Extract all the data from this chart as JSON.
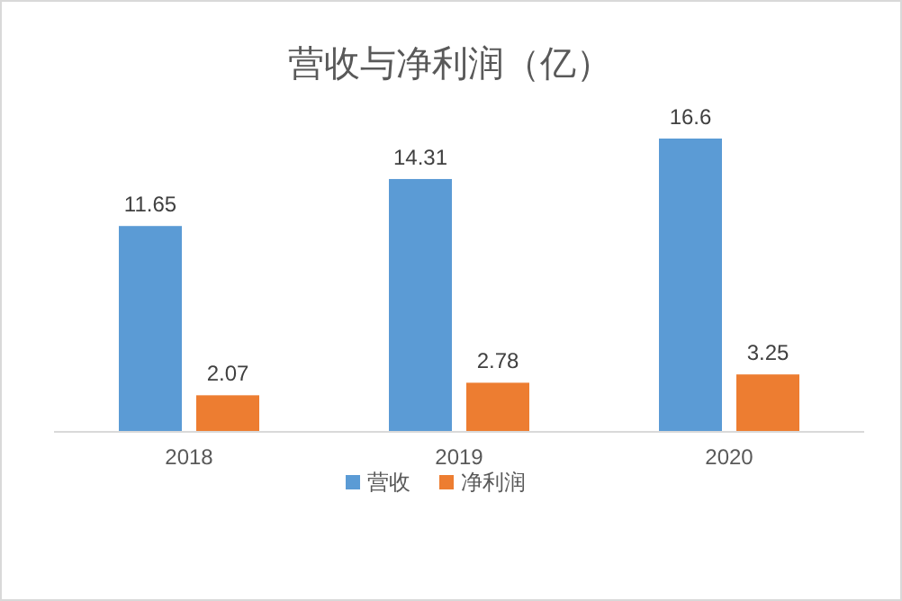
{
  "chart_data": {
    "type": "bar",
    "title": "营收与净利润（亿）",
    "categories": [
      "2018",
      "2019",
      "2020"
    ],
    "series": [
      {
        "name": "营收",
        "color": "#5b9bd5",
        "values": [
          11.65,
          14.31,
          16.6
        ]
      },
      {
        "name": "净利润",
        "color": "#ed7d31",
        "values": [
          2.07,
          2.78,
          3.25
        ]
      }
    ],
    "data_labels": true,
    "legend": "bottom"
  }
}
